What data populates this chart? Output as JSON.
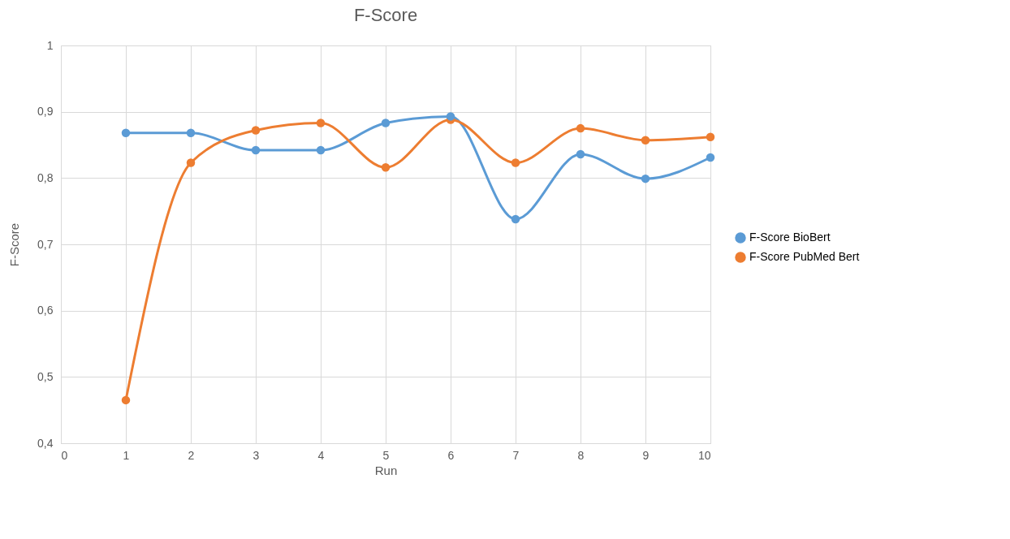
{
  "chart_data": {
    "type": "line",
    "title": "F-Score",
    "xlabel": "Run",
    "ylabel": "F-Score",
    "x": [
      1,
      2,
      3,
      4,
      5,
      6,
      7,
      8,
      9,
      10
    ],
    "series": [
      {
        "name": "F-Score BioBert",
        "color": "#5b9bd5",
        "values": [
          0.868,
          0.868,
          0.842,
          0.842,
          0.883,
          0.893,
          0.738,
          0.836,
          0.799,
          0.831
        ]
      },
      {
        "name": "F-Score PubMed Bert",
        "color": "#ed7d31",
        "values": [
          0.465,
          0.823,
          0.872,
          0.883,
          0.816,
          0.888,
          0.823,
          0.875,
          0.857,
          0.862
        ]
      }
    ],
    "xlim": [
      0,
      10
    ],
    "xticks": [
      0,
      1,
      2,
      3,
      4,
      5,
      6,
      7,
      8,
      9,
      10
    ],
    "ylim": [
      0.4,
      1
    ],
    "yticks": [
      {
        "value": 0.4,
        "label": "0,4"
      },
      {
        "value": 0.5,
        "label": "0,5"
      },
      {
        "value": 0.6,
        "label": "0,6"
      },
      {
        "value": 0.7,
        "label": "0,7"
      },
      {
        "value": 0.8,
        "label": "0,8"
      },
      {
        "value": 0.9,
        "label": "0,9"
      },
      {
        "value": 1,
        "label": "1"
      }
    ],
    "grid": true,
    "legend": "right",
    "marker": "circle",
    "line_style": "solid"
  }
}
